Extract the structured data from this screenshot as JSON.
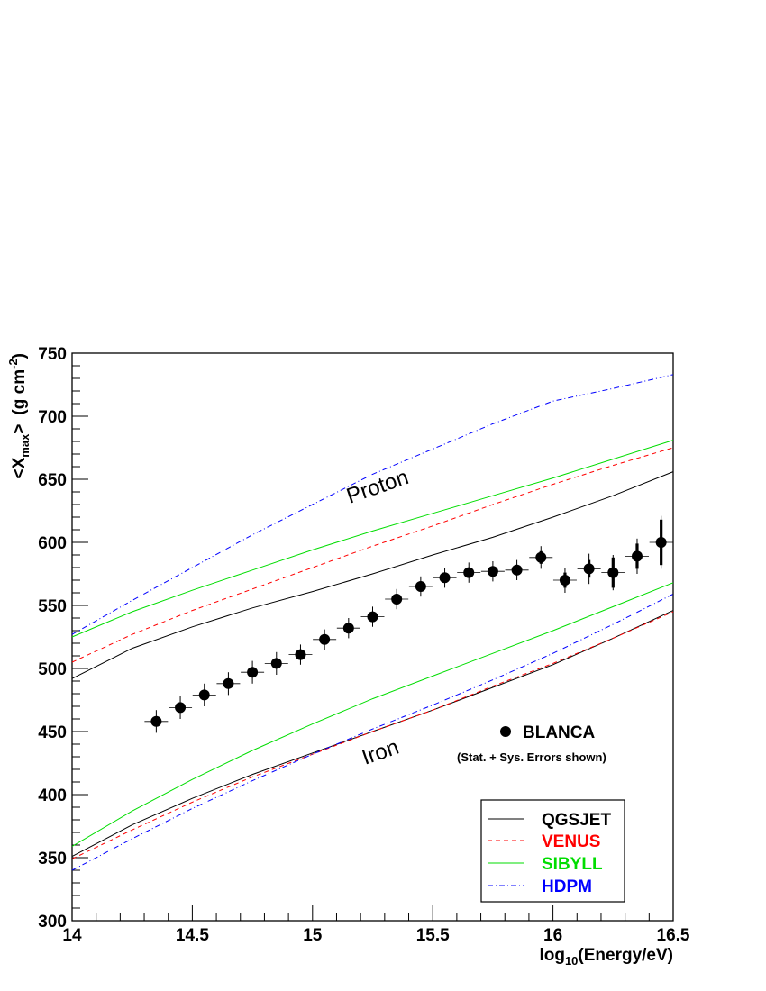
{
  "chart_data": {
    "type": "line",
    "xlabel_prefix": "log",
    "xlabel_sub": "10",
    "xlabel_suffix": "(Energy/eV)",
    "ylabel_main": "<X",
    "ylabel_sub": "max",
    "ylabel_close": ">",
    "ylabel_units": "(g  cm",
    "ylabel_sup": "-2",
    "ylabel_end": ")",
    "xlim": [
      14,
      16.5
    ],
    "ylim": [
      300,
      750
    ],
    "x_ticks": [
      {
        "value": 14,
        "label": "14"
      },
      {
        "value": 14.5,
        "label": "14.5"
      },
      {
        "value": 15,
        "label": "15"
      },
      {
        "value": 15.5,
        "label": "15.5"
      },
      {
        "value": 16,
        "label": "16"
      },
      {
        "value": 16.5,
        "label": "16.5"
      }
    ],
    "y_ticks": [
      {
        "value": 300,
        "label": "300"
      },
      {
        "value": 350,
        "label": "350"
      },
      {
        "value": 400,
        "label": "400"
      },
      {
        "value": 450,
        "label": "450"
      },
      {
        "value": 500,
        "label": "500"
      },
      {
        "value": 550,
        "label": "550"
      },
      {
        "value": 600,
        "label": "600"
      },
      {
        "value": 650,
        "label": "650"
      },
      {
        "value": 700,
        "label": "700"
      },
      {
        "value": 750,
        "label": "750"
      }
    ],
    "annotations": {
      "proton": "Proton",
      "iron": "Iron",
      "blanca_label": "BLANCA",
      "blanca_note": "(Stat. + Sys. Errors shown)"
    },
    "legend": [
      {
        "name": "QGSJET",
        "color": "#000000",
        "dash": "solid"
      },
      {
        "name": "VENUS",
        "color": "#ff0000",
        "dash": "dashed"
      },
      {
        "name": "SIBYLL",
        "color": "#00dd00",
        "dash": "solid"
      },
      {
        "name": "HDPM",
        "color": "#0000ff",
        "dash": "dashdot"
      }
    ],
    "model_curves": [
      {
        "model": "QGSJET",
        "particle": "proton",
        "color": "#000000",
        "dash": "solid",
        "x": [
          14,
          14.25,
          14.5,
          14.75,
          15,
          15.25,
          15.5,
          15.75,
          16,
          16.25,
          16.5
        ],
        "y": [
          492,
          516,
          533,
          548,
          561,
          575,
          590,
          604,
          620,
          637,
          656
        ]
      },
      {
        "model": "VENUS",
        "particle": "proton",
        "color": "#ff0000",
        "dash": "dashed",
        "x": [
          14,
          14.25,
          14.5,
          14.75,
          15,
          15.25,
          15.5,
          15.75,
          16,
          16.25,
          16.5
        ],
        "y": [
          505,
          527,
          546,
          563,
          580,
          597,
          613,
          630,
          646,
          661,
          675
        ]
      },
      {
        "model": "SIBYLL",
        "particle": "proton",
        "color": "#00dd00",
        "dash": "solid",
        "x": [
          14,
          14.25,
          14.5,
          14.75,
          15,
          15.25,
          15.5,
          15.75,
          16,
          16.25,
          16.5
        ],
        "y": [
          525,
          545,
          562,
          578,
          594,
          609,
          623,
          637,
          651,
          666,
          681
        ]
      },
      {
        "model": "HDPM",
        "particle": "proton",
        "color": "#0000ff",
        "dash": "dashdot",
        "x": [
          14,
          14.25,
          14.5,
          14.75,
          15,
          15.25,
          15.5,
          15.75,
          16,
          16.25,
          16.5
        ],
        "y": [
          527,
          554,
          580,
          606,
          630,
          654,
          674,
          694,
          712,
          722,
          733
        ]
      },
      {
        "model": "QGSJET",
        "particle": "iron",
        "color": "#000000",
        "dash": "solid",
        "x": [
          14,
          14.25,
          14.5,
          14.75,
          15,
          15.25,
          15.5,
          15.75,
          16,
          16.25,
          16.5
        ],
        "y": [
          351,
          376,
          397,
          416,
          433,
          450,
          467,
          485,
          503,
          524,
          546
        ]
      },
      {
        "model": "VENUS",
        "particle": "iron",
        "color": "#ff0000",
        "dash": "dashed",
        "x": [
          14,
          14.25,
          14.5,
          14.75,
          15,
          15.25,
          15.5,
          15.75,
          16,
          16.25,
          16.5
        ],
        "y": [
          349,
          372,
          394,
          414,
          432,
          450,
          467,
          486,
          504,
          524,
          545
        ]
      },
      {
        "model": "SIBYLL",
        "particle": "iron",
        "color": "#00dd00",
        "dash": "solid",
        "x": [
          14,
          14.25,
          14.5,
          14.75,
          15,
          15.25,
          15.5,
          15.75,
          16,
          16.25,
          16.5
        ],
        "y": [
          359,
          387,
          412,
          435,
          456,
          476,
          494,
          512,
          530,
          549,
          568
        ]
      },
      {
        "model": "HDPM",
        "particle": "iron",
        "color": "#0000ff",
        "dash": "dashdot",
        "x": [
          14,
          14.25,
          14.5,
          14.75,
          15,
          15.25,
          15.5,
          15.75,
          16,
          16.25,
          16.5
        ],
        "y": [
          340,
          365,
          389,
          411,
          432,
          452,
          471,
          491,
          512,
          535,
          559
        ]
      }
    ],
    "blanca_points": [
      {
        "x": 14.35,
        "y": 458,
        "stat": 4,
        "sys": 9
      },
      {
        "x": 14.45,
        "y": 469,
        "stat": 4,
        "sys": 9
      },
      {
        "x": 14.55,
        "y": 479,
        "stat": 4,
        "sys": 9
      },
      {
        "x": 14.65,
        "y": 488,
        "stat": 4,
        "sys": 9
      },
      {
        "x": 14.75,
        "y": 497,
        "stat": 4,
        "sys": 9
      },
      {
        "x": 14.85,
        "y": 504,
        "stat": 4,
        "sys": 9
      },
      {
        "x": 14.95,
        "y": 511,
        "stat": 4,
        "sys": 8
      },
      {
        "x": 15.05,
        "y": 523,
        "stat": 4,
        "sys": 8
      },
      {
        "x": 15.15,
        "y": 532,
        "stat": 4,
        "sys": 8
      },
      {
        "x": 15.25,
        "y": 541,
        "stat": 4,
        "sys": 8
      },
      {
        "x": 15.35,
        "y": 555,
        "stat": 4,
        "sys": 8
      },
      {
        "x": 15.45,
        "y": 565,
        "stat": 4,
        "sys": 8
      },
      {
        "x": 15.55,
        "y": 572,
        "stat": 4,
        "sys": 8
      },
      {
        "x": 15.65,
        "y": 576,
        "stat": 4,
        "sys": 8
      },
      {
        "x": 15.75,
        "y": 577,
        "stat": 4,
        "sys": 8
      },
      {
        "x": 15.85,
        "y": 578,
        "stat": 4,
        "sys": 8
      },
      {
        "x": 15.95,
        "y": 588,
        "stat": 5,
        "sys": 9
      },
      {
        "x": 16.05,
        "y": 570,
        "stat": 6,
        "sys": 10
      },
      {
        "x": 16.15,
        "y": 579,
        "stat": 7,
        "sys": 12
      },
      {
        "x": 16.25,
        "y": 576,
        "stat": 12,
        "sys": 14
      },
      {
        "x": 16.35,
        "y": 589,
        "stat": 10,
        "sys": 14
      },
      {
        "x": 16.45,
        "y": 600,
        "stat": 18,
        "sys": 21
      }
    ]
  }
}
